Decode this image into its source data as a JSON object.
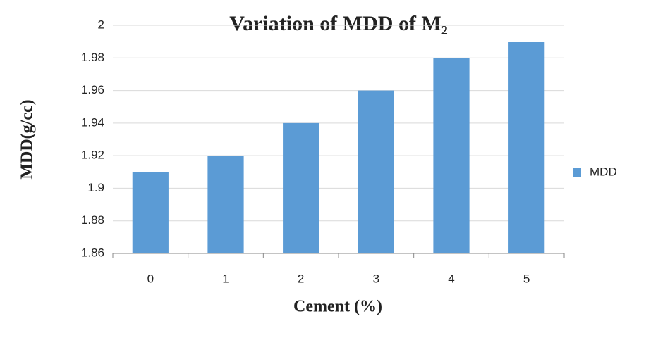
{
  "chart_data": {
    "type": "bar",
    "title": "Variation  of MDD of M₂",
    "x_label": "Cement (%)",
    "y_label": "MDD(g/cc)",
    "categories": [
      "0",
      "1",
      "2",
      "3",
      "4",
      "5"
    ],
    "series": [
      {
        "name": "MDD",
        "color": "#5b9bd5",
        "values": [
          1.91,
          1.92,
          1.94,
          1.96,
          1.98,
          1.99
        ]
      }
    ],
    "ylim": [
      1.86,
      2
    ],
    "yticks": [
      1.86,
      1.88,
      1.9,
      1.92,
      1.94,
      1.96,
      1.98,
      2
    ],
    "grid": true,
    "legend": "right"
  }
}
